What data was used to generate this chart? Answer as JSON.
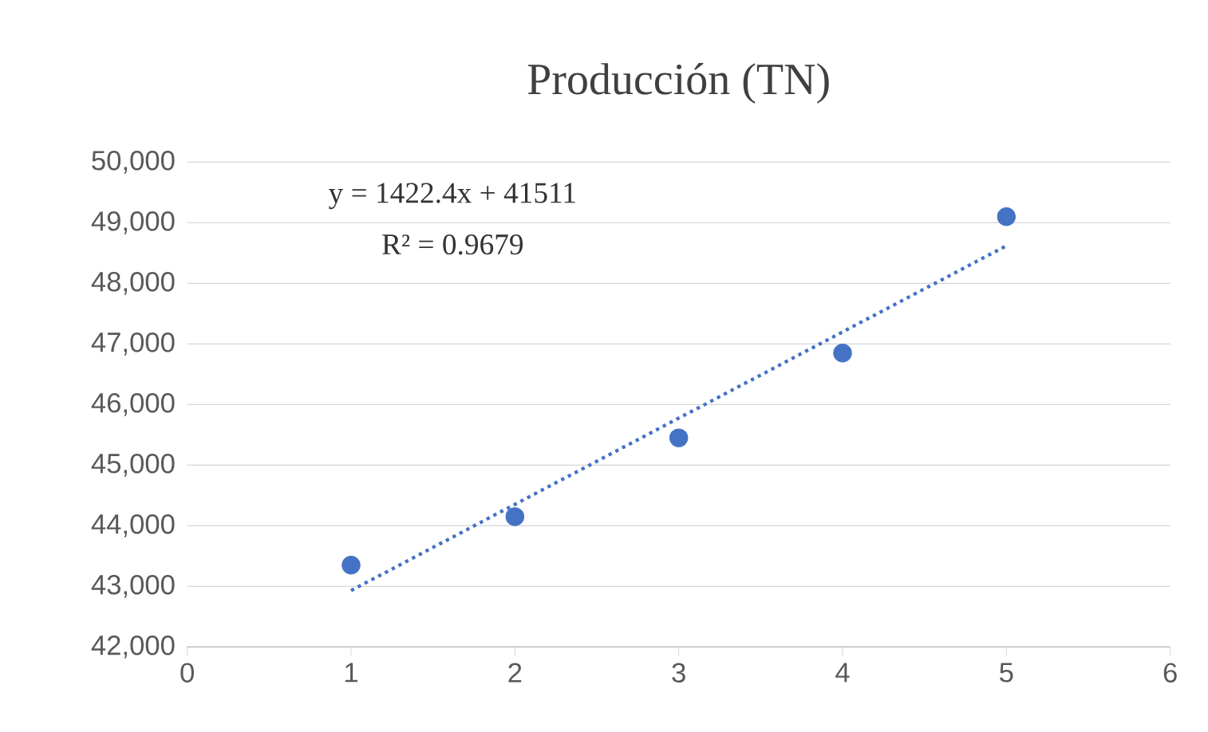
{
  "chart_data": {
    "type": "scatter",
    "title": "Producción (TN)",
    "annotations": [
      "y = 1422.4x + 41511",
      "R² = 0.9679"
    ],
    "series": [
      {
        "color": "#4472c4",
        "x": [
          1,
          2,
          3,
          4,
          5
        ],
        "values": [
          43350,
          44150,
          45450,
          46850,
          49100
        ],
        "marker": "circle"
      },
      {
        "type": "line",
        "color": "#4472c4",
        "x": [
          1,
          5
        ],
        "values": [
          42930,
          48620
        ],
        "line_style": "dotted",
        "marker": "none"
      }
    ],
    "xlim": [
      0,
      6
    ],
    "xticks": [
      0,
      1,
      2,
      3,
      4,
      5,
      6
    ],
    "ylim": [
      42000,
      50000
    ],
    "yticks": [
      {
        "value": 42000,
        "label": "42,000"
      },
      {
        "value": 43000,
        "label": "43,000"
      },
      {
        "value": 44000,
        "label": "44,000"
      },
      {
        "value": 45000,
        "label": "45,000"
      },
      {
        "value": 46000,
        "label": "46,000"
      },
      {
        "value": 47000,
        "label": "47,000"
      },
      {
        "value": 48000,
        "label": "48,000"
      },
      {
        "value": 49000,
        "label": "49,000"
      },
      {
        "value": 50000,
        "label": "50,000"
      }
    ],
    "grid": "y"
  }
}
